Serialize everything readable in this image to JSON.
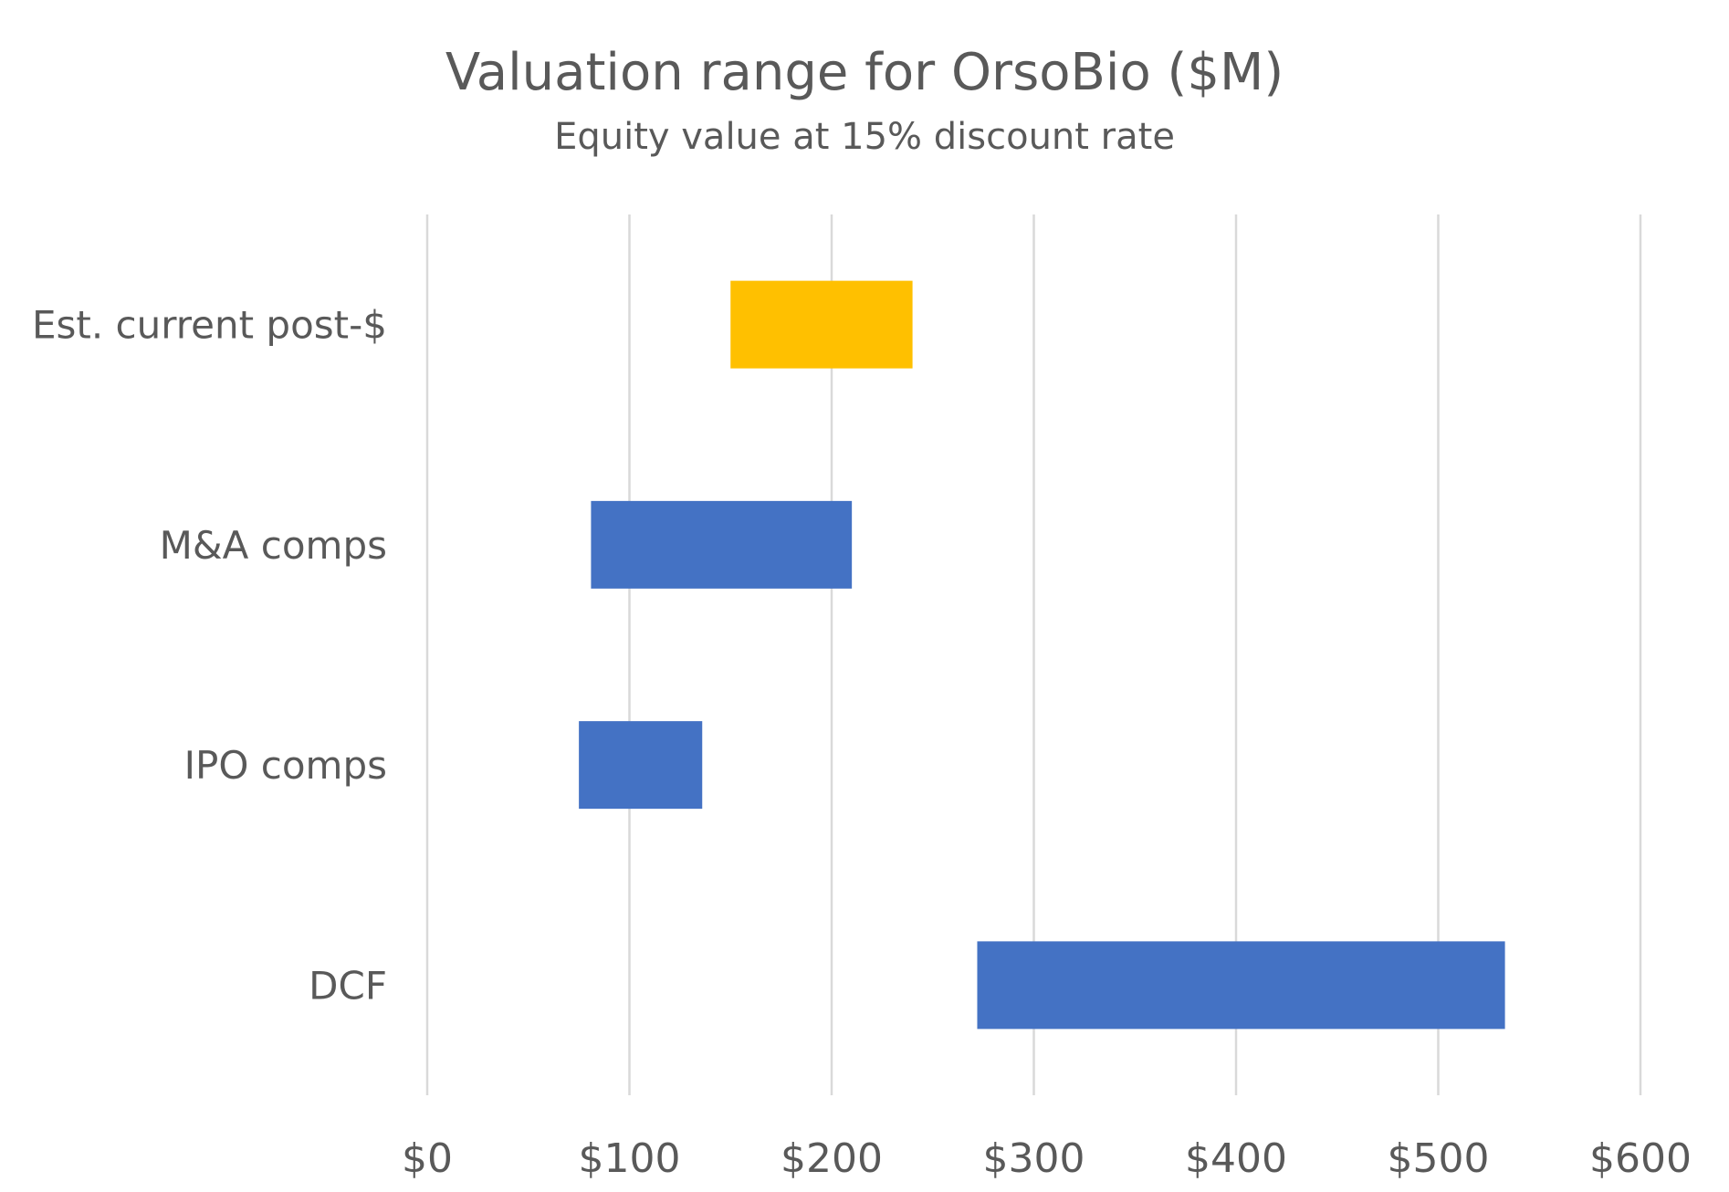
{
  "chart_data": {
    "type": "bar",
    "orientation": "horizontal",
    "floating": true,
    "title": "Valuation range for OrsoBio ($M)",
    "subtitle": "Equity value at 15% discount rate",
    "categories": [
      "Est. current post-$",
      "M&A comps",
      "IPO comps",
      "DCF"
    ],
    "ranges": [
      {
        "category": "Est. current post-$",
        "low": 150,
        "high": 240,
        "color": "#FFC000"
      },
      {
        "category": "M&A comps",
        "low": 81,
        "high": 210,
        "color": "#4472C4"
      },
      {
        "category": "IPO comps",
        "low": 75,
        "high": 136,
        "color": "#4472C4"
      },
      {
        "category": "DCF",
        "low": 272,
        "high": 533,
        "color": "#4472C4"
      }
    ],
    "xlim": [
      0,
      600
    ],
    "xticks": [
      0,
      100,
      200,
      300,
      400,
      500,
      600
    ],
    "xtick_labels": [
      "$0",
      "$100",
      "$200",
      "$300",
      "$400",
      "$500",
      "$600"
    ],
    "xlabel": "",
    "ylabel": "",
    "grid": "vertical",
    "grid_color": "#D9D9D9",
    "text_color": "#595959",
    "legend": "none"
  }
}
